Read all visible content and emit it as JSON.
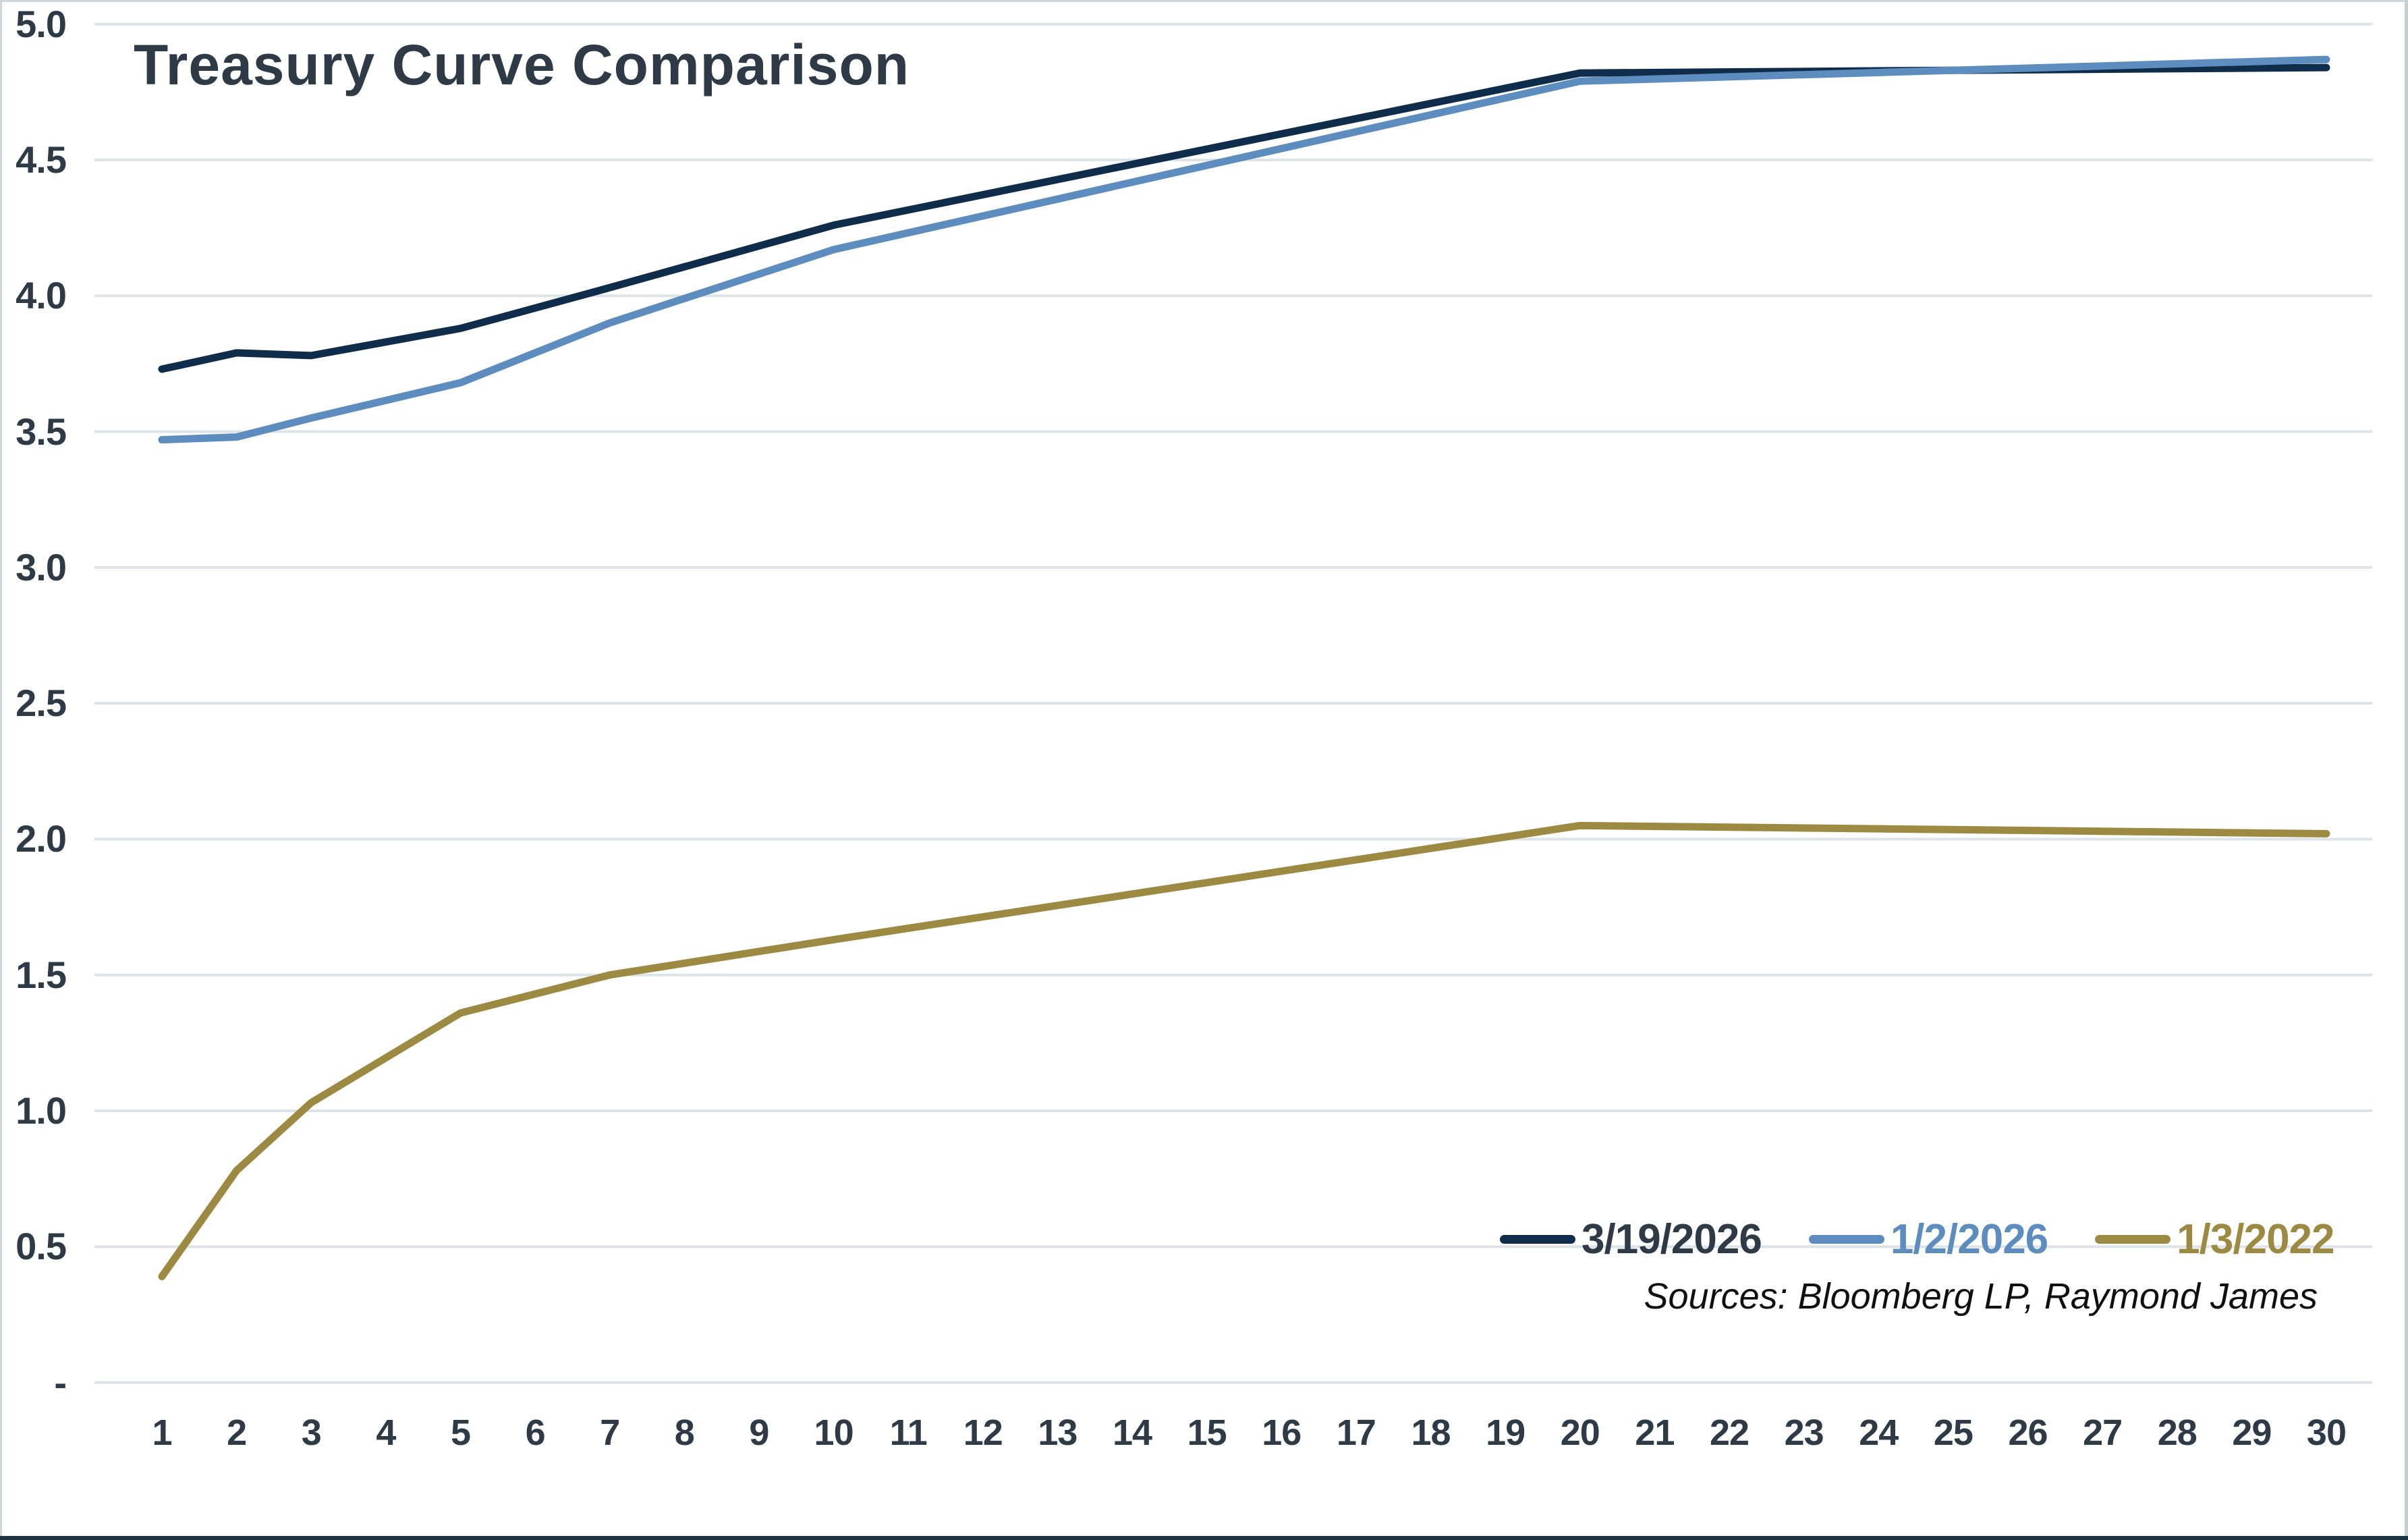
{
  "title": "Treasury Curve Comparison",
  "source_note": "Sources: Bloomberg LP, Raymond James",
  "colors": {
    "background": "#ffffff",
    "text": "#2e3b46",
    "gridline": "#dde4e8",
    "border_top": "#cdd7d9",
    "border_left": "#cdd7d9",
    "border_right": "#c3cfcf",
    "border_bottom": "#1d3442"
  },
  "chart_data": {
    "type": "line",
    "title": "Treasury Curve Comparison",
    "xlabel": "",
    "ylabel": "",
    "ylim": [
      0,
      5.0
    ],
    "grid": "horizontal",
    "legend_position": "inside-bottom-right",
    "x_ticks": [
      1,
      2,
      3,
      4,
      5,
      6,
      7,
      8,
      9,
      10,
      11,
      12,
      13,
      14,
      15,
      16,
      17,
      18,
      19,
      20,
      21,
      22,
      23,
      24,
      25,
      26,
      27,
      28,
      29,
      30
    ],
    "y_ticks": [
      {
        "label": "5.0",
        "value": 5.0
      },
      {
        "label": "4.5",
        "value": 4.5
      },
      {
        "label": "4.0",
        "value": 4.0
      },
      {
        "label": "3.5",
        "value": 3.5
      },
      {
        "label": "3.0",
        "value": 3.0
      },
      {
        "label": "2.5",
        "value": 2.5
      },
      {
        "label": "2.0",
        "value": 2.0
      },
      {
        "label": "1.5",
        "value": 1.5
      },
      {
        "label": "1.0",
        "value": 1.0
      },
      {
        "label": "0.5",
        "value": 0.5
      },
      {
        "label": "-",
        "value": 0.0
      }
    ],
    "maturities": [
      1,
      2,
      3,
      5,
      7,
      10,
      20,
      30
    ],
    "series": [
      {
        "name": "3/19/2026",
        "color": "#0f2d4a",
        "label_color": "#2e3b46",
        "values": [
          3.73,
          3.79,
          3.78,
          3.88,
          4.03,
          4.26,
          4.82,
          4.84
        ]
      },
      {
        "name": "1/2/2026",
        "color": "#5d8cbe",
        "label_color": "#5d8cbe",
        "values": [
          3.47,
          3.48,
          3.55,
          3.68,
          3.9,
          4.17,
          4.79,
          4.87
        ]
      },
      {
        "name": "1/3/2022",
        "color": "#9d8a42",
        "label_color": "#9d8a42",
        "values": [
          0.39,
          0.78,
          1.03,
          1.36,
          1.5,
          1.63,
          2.05,
          2.02
        ]
      }
    ]
  }
}
